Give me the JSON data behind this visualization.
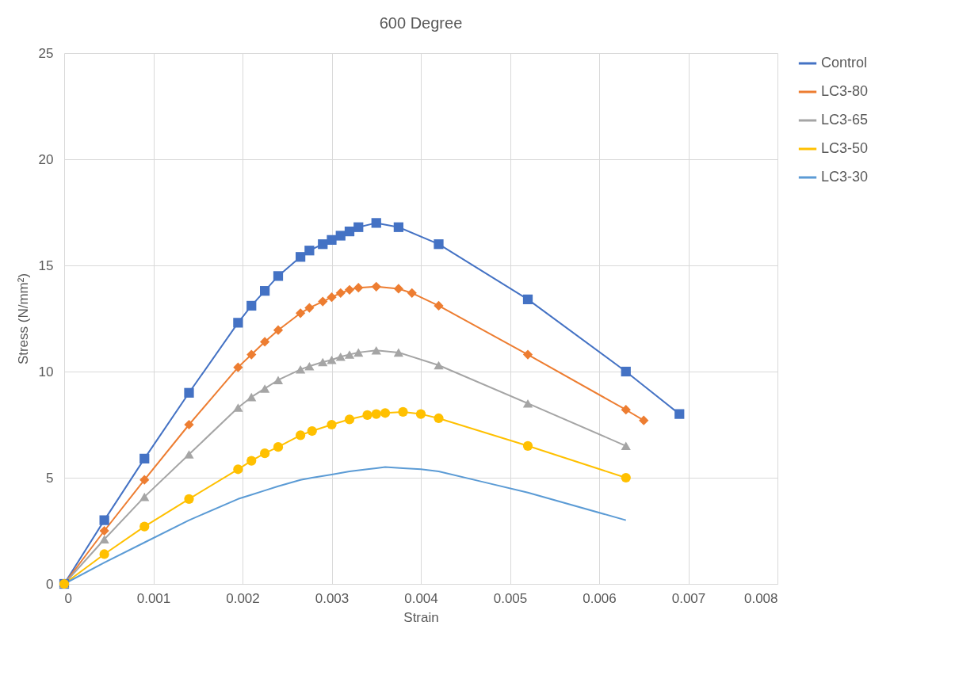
{
  "chart_data": {
    "type": "line",
    "title": "600 Degree",
    "xlabel": "Strain",
    "ylabel": "Stress (N/mm²)",
    "xlim": [
      0,
      0.008
    ],
    "xticks": [
      0,
      0.001,
      0.002,
      0.003,
      0.004,
      0.005,
      0.006,
      0.007,
      0.008
    ],
    "ylim": [
      0,
      25
    ],
    "yticks": [
      0,
      5,
      10,
      15,
      20,
      25
    ],
    "grid": true,
    "legend": "right",
    "series": [
      {
        "name": "Control",
        "color": "#4472c4",
        "marker": "square",
        "x": [
          0,
          0.00045,
          0.0009,
          0.0014,
          0.00195,
          0.0021,
          0.00225,
          0.0024,
          0.00265,
          0.00275,
          0.0029,
          0.003,
          0.0031,
          0.0032,
          0.0033,
          0.0035,
          0.00375,
          0.0042,
          0.0052,
          0.0063,
          0.0069
        ],
        "values": [
          0,
          3,
          5.9,
          9,
          12.3,
          13.1,
          13.8,
          14.5,
          15.4,
          15.7,
          16,
          16.2,
          16.4,
          16.6,
          16.8,
          17,
          16.8,
          16,
          13.4,
          10,
          8
        ]
      },
      {
        "name": "LC3-80",
        "color": "#ed7d31",
        "marker": "diamond",
        "x": [
          0,
          0.00045,
          0.0009,
          0.0014,
          0.00195,
          0.0021,
          0.00225,
          0.0024,
          0.00265,
          0.00275,
          0.0029,
          0.003,
          0.0031,
          0.0032,
          0.0033,
          0.0035,
          0.00375,
          0.0039,
          0.0042,
          0.0052,
          0.0063,
          0.0065
        ],
        "values": [
          0,
          2.5,
          4.9,
          7.5,
          10.2,
          10.8,
          11.4,
          11.95,
          12.75,
          13,
          13.3,
          13.5,
          13.7,
          13.85,
          13.95,
          14,
          13.9,
          13.7,
          13.1,
          10.8,
          8.2,
          7.7
        ]
      },
      {
        "name": "LC3-65",
        "color": "#a5a5a5",
        "marker": "triangle",
        "x": [
          0,
          0.00045,
          0.0009,
          0.0014,
          0.00195,
          0.0021,
          0.00225,
          0.0024,
          0.00265,
          0.00275,
          0.0029,
          0.003,
          0.0031,
          0.0032,
          0.0033,
          0.0035,
          0.00375,
          0.0042,
          0.0052,
          0.0063
        ],
        "values": [
          0,
          2.1,
          4.1,
          6.1,
          8.3,
          8.8,
          9.2,
          9.6,
          10.1,
          10.25,
          10.45,
          10.55,
          10.7,
          10.8,
          10.9,
          11,
          10.9,
          10.3,
          8.5,
          6.5
        ]
      },
      {
        "name": "LC3-50",
        "color": "#ffc000",
        "marker": "circle",
        "x": [
          0,
          0.00045,
          0.0009,
          0.0014,
          0.00195,
          0.0021,
          0.00225,
          0.0024,
          0.00265,
          0.00278,
          0.003,
          0.0032,
          0.0034,
          0.0035,
          0.0036,
          0.0038,
          0.004,
          0.0042,
          0.0052,
          0.0063
        ],
        "values": [
          0,
          1.4,
          2.7,
          4,
          5.4,
          5.8,
          6.15,
          6.45,
          7,
          7.2,
          7.5,
          7.75,
          7.95,
          8,
          8.05,
          8.1,
          8,
          7.8,
          6.5,
          5
        ]
      },
      {
        "name": "LC3-30",
        "color": "#5b9bd5",
        "marker": "none",
        "x": [
          0,
          0.00045,
          0.0009,
          0.0014,
          0.00195,
          0.0021,
          0.00225,
          0.0024,
          0.00265,
          0.00278,
          0.003,
          0.0032,
          0.0034,
          0.0035,
          0.0036,
          0.0038,
          0.004,
          0.0042,
          0.0047,
          0.0052,
          0.0063
        ],
        "values": [
          0,
          1,
          1.95,
          3,
          4,
          4.2,
          4.4,
          4.6,
          4.9,
          5,
          5.15,
          5.3,
          5.4,
          5.45,
          5.5,
          5.45,
          5.4,
          5.3,
          4.8,
          4.3,
          3
        ]
      }
    ]
  }
}
